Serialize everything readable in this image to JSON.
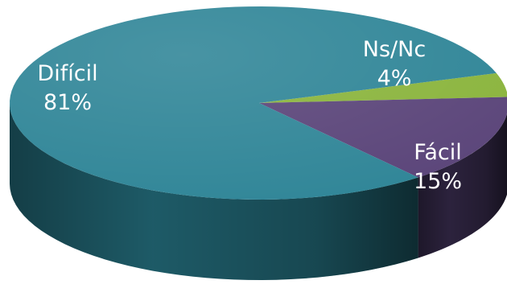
{
  "chart_data": {
    "type": "pie",
    "style": "3d",
    "slices": [
      {
        "name": "Difícil",
        "value": 81,
        "value_label": "81%",
        "color": "#2f8597",
        "side_color": "#1f5f6c"
      },
      {
        "name": "Ns/Nc",
        "value": 4,
        "value_label": "4%",
        "color": "#8ab43c",
        "side_color": "#5d7d25"
      },
      {
        "name": "Fácil",
        "value": 15,
        "value_label": "15%",
        "color": "#5a4479",
        "side_color": "#2e2440"
      }
    ],
    "legend": "none"
  }
}
